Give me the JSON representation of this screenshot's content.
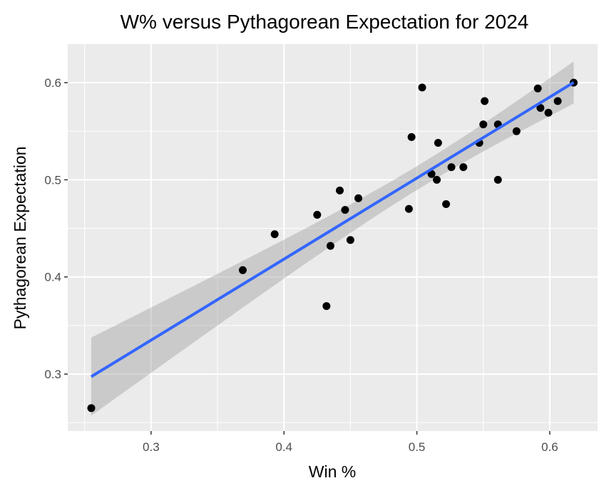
{
  "chart_data": {
    "type": "scatter",
    "title": "W% versus Pythagorean Expectation for 2024",
    "xlabel": "Win %",
    "ylabel": "Pythagorean Expectation",
    "xlim": [
      0.2373,
      0.636
    ],
    "ylim": [
      0.2414,
      0.6396
    ],
    "xticks": [
      "0.3",
      "0.4",
      "0.5",
      "0.6"
    ],
    "yticks": [
      "0.3",
      "0.4",
      "0.5",
      "0.6"
    ],
    "grid": true,
    "smooth": {
      "method": "linear regression",
      "confidence_band": true,
      "color": "#3366FF"
    },
    "colors": {
      "panel": "#EBEBEB",
      "points": "#000000",
      "band": "#999999"
    },
    "points": [
      [
        0.504,
        0.595
      ],
      [
        0.496,
        0.544
      ],
      [
        0.516,
        0.538
      ],
      [
        0.551,
        0.581
      ],
      [
        0.591,
        0.594
      ],
      [
        0.618,
        0.6
      ],
      [
        0.606,
        0.581
      ],
      [
        0.593,
        0.574
      ],
      [
        0.599,
        0.569
      ],
      [
        0.55,
        0.557
      ],
      [
        0.561,
        0.557
      ],
      [
        0.575,
        0.55
      ],
      [
        0.547,
        0.538
      ],
      [
        0.511,
        0.506
      ],
      [
        0.515,
        0.5
      ],
      [
        0.526,
        0.513
      ],
      [
        0.535,
        0.513
      ],
      [
        0.561,
        0.5
      ],
      [
        0.522,
        0.475
      ],
      [
        0.494,
        0.47
      ],
      [
        0.255,
        0.265
      ],
      [
        0.369,
        0.407
      ],
      [
        0.393,
        0.444
      ],
      [
        0.425,
        0.464
      ],
      [
        0.442,
        0.489
      ],
      [
        0.456,
        0.481
      ],
      [
        0.446,
        0.469
      ],
      [
        0.435,
        0.432
      ],
      [
        0.45,
        0.438
      ],
      [
        0.432,
        0.37
      ]
    ]
  }
}
